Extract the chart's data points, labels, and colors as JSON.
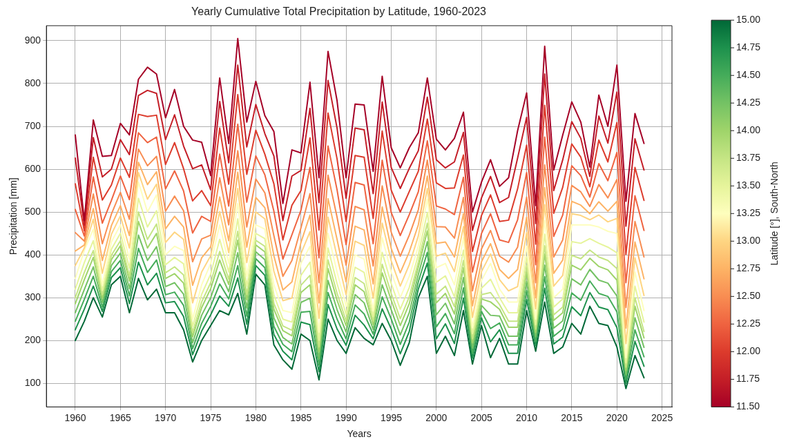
{
  "chart_data": {
    "type": "line",
    "title": "Yearly Cumulative Total Precipitation by Latitude, 1960-2023",
    "xlabel": "Years",
    "ylabel": "Precipitation [mm]",
    "clabel": "Latitude [°], South-North",
    "x": [
      1960,
      1961,
      1962,
      1963,
      1964,
      1965,
      1966,
      1967,
      1968,
      1969,
      1970,
      1971,
      1972,
      1973,
      1974,
      1975,
      1976,
      1977,
      1978,
      1979,
      1980,
      1981,
      1982,
      1983,
      1984,
      1985,
      1986,
      1987,
      1988,
      1989,
      1990,
      1991,
      1992,
      1993,
      1994,
      1995,
      1996,
      1997,
      1998,
      1999,
      2000,
      2001,
      2002,
      2003,
      2004,
      2005,
      2006,
      2007,
      2008,
      2009,
      2010,
      2011,
      2012,
      2013,
      2014,
      2015,
      2016,
      2017,
      2018,
      2019,
      2020,
      2021,
      2022,
      2023
    ],
    "xlim": [
      1956.8,
      2026.1
    ],
    "xticks": [
      1960,
      1965,
      1970,
      1975,
      1980,
      1985,
      1990,
      1995,
      2000,
      2005,
      2010,
      2015,
      2020,
      2025
    ],
    "ylim": [
      45,
      935
    ],
    "yticks": [
      100,
      200,
      300,
      400,
      500,
      600,
      700,
      800,
      900
    ],
    "grid": true,
    "clim": [
      11.5,
      15
    ],
    "cticks": [
      {
        "value": 11.5,
        "label": "11.50"
      },
      {
        "value": 11.75,
        "label": "11.75"
      },
      {
        "value": 12,
        "label": "12.00"
      },
      {
        "value": 12.25,
        "label": "12.25"
      },
      {
        "value": 12.5,
        "label": "12.50"
      },
      {
        "value": 12.75,
        "label": "12.75"
      },
      {
        "value": 13,
        "label": "13.00"
      },
      {
        "value": 13.25,
        "label": "13.25"
      },
      {
        "value": 13.5,
        "label": "13.50"
      },
      {
        "value": 13.75,
        "label": "13.75"
      },
      {
        "value": 14,
        "label": "14.00"
      },
      {
        "value": 14.25,
        "label": "14.25"
      },
      {
        "value": 14.5,
        "label": "14.50"
      },
      {
        "value": 14.75,
        "label": "14.75"
      },
      {
        "value": 15,
        "label": "15.00"
      }
    ],
    "series": [
      {
        "color": "#a50026",
        "values": [
          680,
          480,
          715,
          630,
          632,
          707,
          680,
          810,
          838,
          822,
          720,
          786,
          700,
          668,
          663,
          585,
          813,
          660,
          905,
          710,
          805,
          725,
          688,
          520,
          645,
          638,
          803,
          580,
          875,
          760,
          580,
          752,
          750,
          595,
          817,
          650,
          603,
          650,
          685,
          813,
          670,
          645,
          672,
          733,
          500,
          570,
          622,
          560,
          580,
          690,
          778,
          515,
          887,
          598,
          680,
          757,
          710,
          605,
          773,
          700,
          843,
          525,
          730,
          660
        ]
      },
      {
        "color": "#c41e27",
        "values": [
          626,
          469,
          674,
          582,
          600,
          669,
          634,
          772,
          784,
          777,
          669,
          727,
          654,
          601,
          610,
          552,
          758,
          615,
          843,
          652,
          751,
          683,
          631,
          480,
          584,
          597,
          742,
          522,
          807,
          696,
          532,
          696,
          692,
          543,
          757,
          604,
          555,
          602,
          643,
          768,
          622,
          603,
          617,
          686,
          457,
          533,
          583,
          522,
          534,
          626,
          721,
          473,
          822,
          550,
          622,
          711,
          672,
          583,
          724,
          661,
          780,
          467,
          671,
          598
        ]
      },
      {
        "color": "#dc3b2c",
        "values": [
          566,
          456,
          628,
          528,
          563,
          626,
          581,
          728,
          723,
          726,
          611,
          662,
          601,
          526,
          550,
          515,
          696,
          565,
          774,
          588,
          691,
          635,
          566,
          435,
          516,
          550,
          673,
          458,
          731,
          624,
          478,
          632,
          628,
          485,
          689,
          551,
          500,
          548,
          595,
          717,
          568,
          555,
          556,
          633,
          408,
          492,
          540,
          478,
          481,
          554,
          656,
          425,
          749,
          497,
          558,
          659,
          628,
          559,
          668,
          617,
          709,
          401,
          604,
          527
        ]
      },
      {
        "color": "#ef6340",
        "values": [
          506,
          444,
          582,
          474,
          527,
          584,
          529,
          685,
          662,
          675,
          554,
          596,
          549,
          451,
          490,
          478,
          635,
          514,
          705,
          523,
          631,
          587,
          502,
          390,
          447,
          504,
          604,
          393,
          654,
          552,
          424,
          569,
          563,
          426,
          621,
          499,
          445,
          494,
          547,
          666,
          514,
          507,
          494,
          581,
          360,
          450,
          496,
          435,
          429,
          482,
          592,
          377,
          675,
          443,
          493,
          608,
          585,
          535,
          613,
          573,
          639,
          335,
          538,
          457
        ]
      },
      {
        "color": "#f88d52",
        "values": [
          452,
          432,
          542,
          426,
          495,
          546,
          483,
          647,
          608,
          630,
          502,
          537,
          503,
          384,
          437,
          446,
          580,
          470,
          643,
          465,
          577,
          545,
          445,
          350,
          387,
          463,
          543,
          335,
          586,
          488,
          376,
          513,
          505,
          374,
          561,
          453,
          397,
          446,
          505,
          621,
          466,
          465,
          439,
          534,
          316,
          414,
          457,
          397,
          383,
          418,
          535,
          335,
          610,
          395,
          435,
          562,
          547,
          513,
          564,
          533,
          576,
          277,
          478,
          395
        ]
      },
      {
        "color": "#fdb365",
        "values": [
          409,
          423,
          508,
          387,
          468,
          515,
          445,
          616,
          564,
          594,
          461,
          490,
          465,
          329,
          393,
          419,
          535,
          433,
          593,
          418,
          534,
          510,
          398,
          318,
          337,
          429,
          493,
          288,
          531,
          436,
          337,
          467,
          458,
          332,
          512,
          415,
          358,
          407,
          470,
          584,
          427,
          430,
          395,
          496,
          281,
          384,
          426,
          366,
          345,
          366,
          488,
          300,
          557,
          357,
          388,
          525,
          516,
          496,
          524,
          502,
          525,
          229,
          430,
          344
        ]
      },
      {
        "color": "#fed582",
        "values": [
          375,
          416,
          483,
          357,
          448,
          491,
          416,
          592,
          530,
          565,
          429,
          453,
          436,
          288,
          360,
          398,
          501,
          405,
          555,
          382,
          500,
          484,
          362,
          293,
          299,
          403,
          454,
          252,
          488,
          396,
          307,
          432,
          422,
          299,
          474,
          386,
          327,
          377,
          444,
          555,
          397,
          404,
          361,
          466,
          254,
          361,
          402,
          342,
          316,
          326,
          452,
          274,
          517,
          327,
          352,
          496,
          492,
          482,
          493,
          477,
          485,
          193,
          393,
          305
        ]
      },
      {
        "color": "#fefebd",
        "values": [
          345,
          410,
          460,
          330,
          430,
          470,
          390,
          570,
          500,
          540,
          400,
          420,
          410,
          250,
          330,
          380,
          470,
          380,
          520,
          350,
          470,
          460,
          330,
          270,
          265,
          380,
          420,
          220,
          450,
          360,
          280,
          400,
          390,
          270,
          440,
          360,
          300,
          350,
          420,
          530,
          370,
          380,
          330,
          440,
          230,
          340,
          380,
          320,
          290,
          290,
          420,
          250,
          480,
          300,
          320,
          470,
          470,
          470,
          465,
          455,
          450,
          160,
          360,
          270
        ]
      },
      {
        "color": "#e6f49b",
        "values": [
          320,
          382,
          433,
          317,
          413,
          450,
          369,
          532,
          465,
          503,
          377,
          394,
          379,
          233,
          308,
          355,
          436,
          360,
          484,
          327,
          450,
          438,
          306,
          250,
          243,
          352,
          383,
          201,
          416,
          333,
          261,
          371,
          359,
          256,
          406,
          333,
          273,
          324,
          400,
          499,
          336,
          351,
          302,
          411,
          216,
          322,
          343,
          300,
          265,
          265,
          395,
          237,
          448,
          278,
          297,
          431,
          427,
          438,
          427,
          418,
          405,
          148,
          327,
          243
        ]
      },
      {
        "color": "#c5e584",
        "values": [
          300,
          359,
          410,
          307,
          399,
          433,
          351,
          500,
          436,
          472,
          358,
          372,
          353,
          219,
          290,
          335,
          408,
          343,
          455,
          308,
          434,
          420,
          287,
          234,
          224,
          329,
          352,
          185,
          388,
          310,
          246,
          347,
          333,
          245,
          378,
          310,
          251,
          302,
          383,
          474,
          308,
          327,
          279,
          387,
          204,
          307,
          312,
          284,
          245,
          245,
          374,
          227,
          421,
          260,
          278,
          399,
          391,
          411,
          395,
          387,
          368,
          138,
          300,
          221
        ]
      },
      {
        "color": "#9fd46a",
        "values": [
          286,
          342,
          394,
          299,
          389,
          421,
          339,
          478,
          416,
          450,
          345,
          356,
          334,
          209,
          277,
          321,
          388,
          331,
          434,
          295,
          423,
          407,
          273,
          223,
          211,
          312,
          330,
          174,
          368,
          294,
          235,
          330,
          314,
          237,
          358,
          294,
          235,
          286,
          371,
          456,
          288,
          310,
          262,
          370,
          195,
          297,
          290,
          273,
          231,
          231,
          359,
          219,
          402,
          247,
          265,
          376,
          365,
          392,
          373,
          365,
          341,
          130,
          280,
          206
        ]
      },
      {
        "color": "#74c264",
        "values": [
          265,
          319,
          372,
          289,
          375,
          404,
          321,
          446,
          387,
          419,
          326,
          335,
          308,
          195,
          259,
          300,
          360,
          314,
          405,
          276,
          407,
          389,
          253,
          207,
          192,
          289,
          299,
          158,
          340,
          272,
          220,
          307,
          288,
          226,
          330,
          272,
          213,
          265,
          354,
          431,
          260,
          287,
          239,
          347,
          183,
          282,
          259,
          257,
          210,
          210,
          338,
          209,
          376,
          229,
          246,
          344,
          330,
          366,
          341,
          334,
          304,
          120,
          253,
          184
        ]
      },
      {
        "color": "#45ac5a",
        "values": [
          245,
          296,
          350,
          278,
          361,
          387,
          304,
          415,
          359,
          388,
          307,
          313,
          282,
          181,
          240,
          280,
          332,
          297,
          375,
          257,
          391,
          370,
          233,
          191,
          174,
          266,
          268,
          143,
          312,
          250,
          204,
          283,
          262,
          215,
          302,
          250,
          191,
          243,
          337,
          406,
          232,
          263,
          216,
          323,
          171,
          268,
          228,
          241,
          190,
          190,
          317,
          198,
          349,
          210,
          227,
          311,
          294,
          339,
          310,
          303,
          267,
          110,
          225,
          162
        ]
      },
      {
        "color": "#1d914d",
        "values": [
          225,
          273,
          327,
          268,
          347,
          370,
          286,
          383,
          330,
          357,
          288,
          291,
          256,
          167,
          222,
          260,
          304,
          280,
          346,
          238,
          375,
          352,
          214,
          175,
          155,
          243,
          237,
          127,
          284,
          227,
          189,
          259,
          236,
          204,
          274,
          227,
          169,
          221,
          320,
          381,
          204,
          239,
          193,
          299,
          159,
          253,
          197,
          225,
          170,
          170,
          296,
          188,
          322,
          192,
          208,
          279,
          258,
          312,
          278,
          272,
          230,
          100,
          198,
          140
        ]
      },
      {
        "color": "#006837",
        "values": [
          200,
          245,
          300,
          255,
          330,
          350,
          265,
          345,
          295,
          320,
          265,
          265,
          225,
          150,
          200,
          235,
          270,
          260,
          310,
          215,
          355,
          330,
          190,
          155,
          133,
          215,
          200,
          108,
          250,
          200,
          170,
          230,
          205,
          190,
          240,
          200,
          142,
          195,
          300,
          350,
          170,
          210,
          165,
          270,
          145,
          235,
          160,
          205,
          145,
          145,
          270,
          175,
          290,
          170,
          185,
          240,
          215,
          280,
          240,
          235,
          185,
          88,
          165,
          113
        ]
      }
    ]
  }
}
